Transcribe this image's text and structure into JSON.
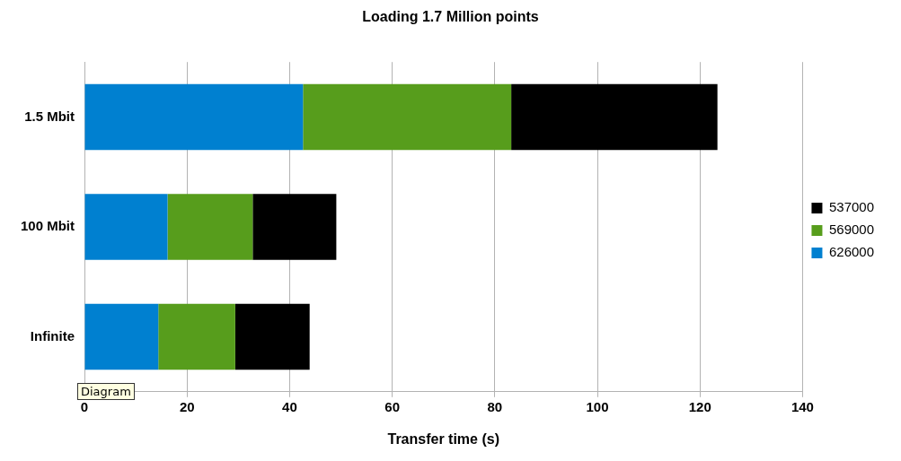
{
  "chart_data": {
    "type": "bar",
    "orientation": "horizontal",
    "stacked": true,
    "title": "Loading 1.7 Million points",
    "xlabel": "Transfer time (s)",
    "categories": [
      "1.5 Mbit",
      "100 Mbit",
      "Infinite"
    ],
    "series": [
      {
        "name": "626000",
        "color": "#0080d0",
        "values": [
          42.6,
          16.2,
          14.4
        ]
      },
      {
        "name": "569000",
        "color": "#579d1c",
        "values": [
          40.6,
          16.6,
          15.0
        ]
      },
      {
        "name": "537000",
        "color": "#000000",
        "values": [
          40.2,
          16.3,
          14.5
        ]
      }
    ],
    "xlim": [
      0,
      140
    ],
    "xticks": [
      0,
      20,
      40,
      60,
      80,
      100,
      120,
      140
    ],
    "grid": "x",
    "legend": "right",
    "annotations": [
      "Diagram"
    ]
  }
}
